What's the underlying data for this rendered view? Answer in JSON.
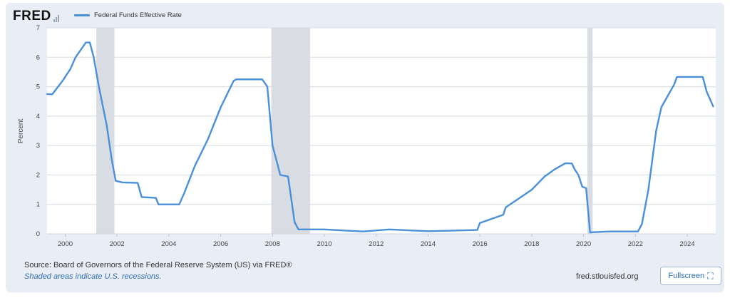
{
  "header": {
    "logo_text": "FRED",
    "legend_label": "Federal Funds Effective Rate"
  },
  "footer": {
    "source": "Source: Board of Governors of the Federal Reserve System (US) via FRED®",
    "note": "Shaded areas indicate U.S. recessions.",
    "site": "fred.stlouisfed.org",
    "fullscreen_label": "Fullscreen",
    "fullscreen_icon": "expand-icon"
  },
  "colors": {
    "series": "#4a90d9",
    "recession": "#d9dde3",
    "background": "#e9eef6",
    "plot_bg": "#ffffff",
    "link": "#2f6fb5"
  },
  "chart_data": {
    "type": "line",
    "title": "",
    "xlabel": "",
    "ylabel": "Percent",
    "xlim": [
      1999.3,
      2025.1
    ],
    "ylim": [
      0,
      7
    ],
    "yticks": [
      0,
      1,
      2,
      3,
      4,
      5,
      6,
      7
    ],
    "xticks": [
      2000,
      2002,
      2004,
      2006,
      2008,
      2010,
      2012,
      2014,
      2016,
      2018,
      2020,
      2022,
      2024
    ],
    "grid": "horizontal",
    "legend": "top-left",
    "recessions": [
      [
        2001.2,
        2001.9
      ],
      [
        2007.95,
        2009.45
      ],
      [
        2020.15,
        2020.35
      ]
    ],
    "series": [
      {
        "name": "Federal Funds Effective Rate",
        "x": [
          1999.3,
          1999.5,
          1999.9,
          2000.2,
          2000.4,
          2000.8,
          2000.95,
          2001.1,
          2001.3,
          2001.6,
          2001.8,
          2001.95,
          2002.2,
          2002.8,
          2002.95,
          2003.5,
          2003.6,
          2004.4,
          2004.6,
          2005.0,
          2005.5,
          2006.0,
          2006.5,
          2006.6,
          2007.6,
          2007.8,
          2008.0,
          2008.3,
          2008.6,
          2008.85,
          2009.0,
          2010.0,
          2011.5,
          2012.5,
          2014.0,
          2015.9,
          2016.0,
          2016.9,
          2017.0,
          2017.5,
          2018.0,
          2018.5,
          2018.9,
          2019.3,
          2019.55,
          2019.65,
          2019.8,
          2019.95,
          2020.1,
          2020.25,
          2021.0,
          2022.1,
          2022.25,
          2022.5,
          2022.8,
          2023.0,
          2023.5,
          2023.6,
          2024.6,
          2024.75,
          2025.0
        ],
        "values": [
          4.75,
          4.74,
          5.2,
          5.6,
          6.0,
          6.5,
          6.5,
          6.0,
          5.0,
          3.7,
          2.5,
          1.8,
          1.75,
          1.73,
          1.25,
          1.22,
          1.0,
          1.0,
          1.4,
          2.3,
          3.2,
          4.3,
          5.2,
          5.25,
          5.25,
          5.0,
          3.0,
          2.0,
          1.95,
          0.4,
          0.15,
          0.15,
          0.08,
          0.15,
          0.09,
          0.13,
          0.37,
          0.65,
          0.9,
          1.2,
          1.5,
          1.95,
          2.2,
          2.4,
          2.39,
          2.2,
          2.0,
          1.6,
          1.55,
          0.05,
          0.08,
          0.08,
          0.33,
          1.5,
          3.5,
          4.3,
          5.08,
          5.33,
          5.33,
          4.83,
          4.33
        ]
      }
    ]
  }
}
